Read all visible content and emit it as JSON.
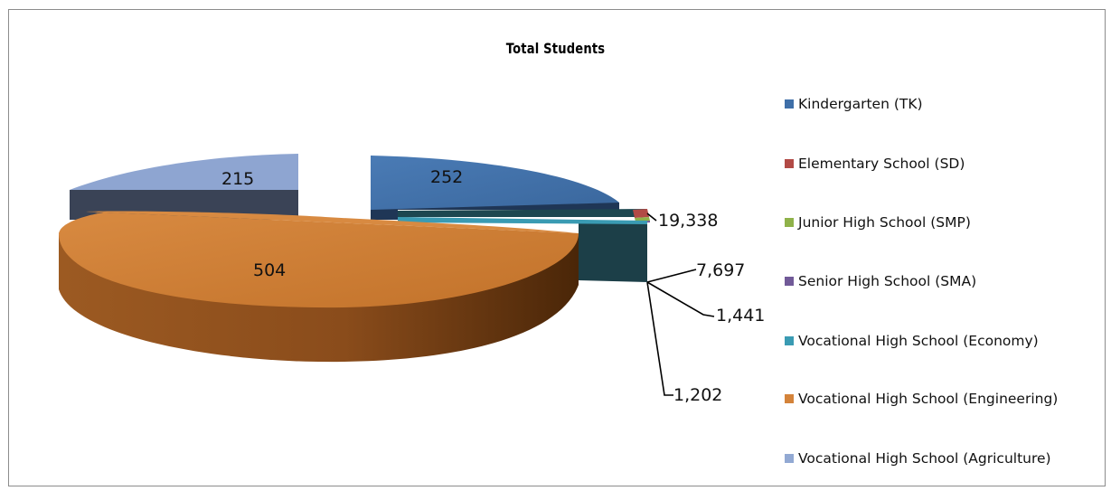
{
  "chart_data": {
    "type": "pie",
    "title": "Total Students",
    "style": "3d-exploded",
    "legend_position": "right",
    "slices": [
      {
        "name": "Kindergarten (TK)",
        "value": 252,
        "label": "252",
        "color": "#3F6FA8"
      },
      {
        "name": "Elementary School (SD)",
        "value": 19338,
        "label": "19,338",
        "color": "#B24A46"
      },
      {
        "name": "Junior High School (SMP)",
        "value": 7697,
        "label": "7,697",
        "color": "#8FB24A"
      },
      {
        "name": "Senior High School (SMA)",
        "value": 1441,
        "label": "1,441",
        "color": "#715A98"
      },
      {
        "name": "Vocational High School (Economy)",
        "value": 1202,
        "label": "1,202",
        "color": "#3A9BB3"
      },
      {
        "name": "Vocational High School (Engineering)",
        "value": 504,
        "label": "504",
        "color": "#D4833A"
      },
      {
        "name": "Vocational High School (Agriculture)",
        "value": 215,
        "label": "215",
        "color": "#92A9D3"
      }
    ]
  }
}
